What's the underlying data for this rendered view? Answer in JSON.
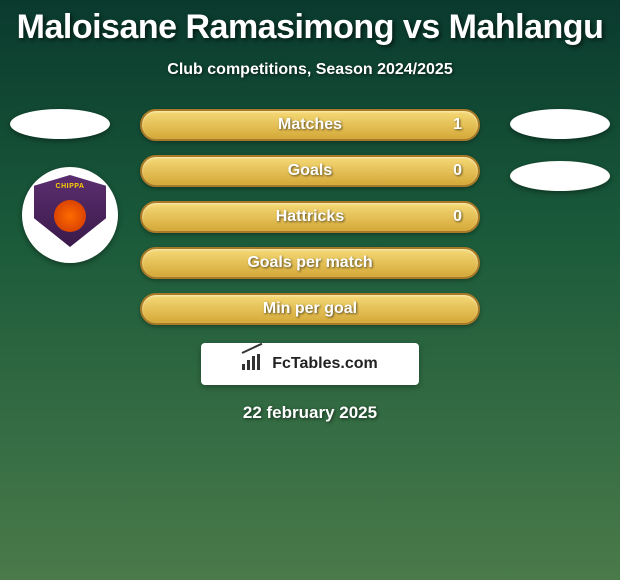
{
  "title": "Maloisane Ramasimong vs Mahlangu",
  "subtitle": "Club competitions, Season 2024/2025",
  "date": "22 february 2025",
  "footer_brand": "FcTables.com",
  "colors": {
    "bg_top": "#0a3a2e",
    "bg_mid": "#1a5a3a",
    "bg_bottom": "#4a7a4a",
    "bar_top": "#f5d976",
    "bar_bottom": "#d4a838",
    "bar_border": "#a87a28",
    "text": "#ffffff",
    "badge_shield": "#5b2e6f",
    "badge_text": "#ffcc00",
    "badge_center": "#ff6b00"
  },
  "badge": {
    "label": "CHIPPA"
  },
  "stats": [
    {
      "label": "Matches",
      "value": "1"
    },
    {
      "label": "Goals",
      "value": "0"
    },
    {
      "label": "Hattricks",
      "value": "0"
    },
    {
      "label": "Goals per match",
      "value": ""
    },
    {
      "label": "Min per goal",
      "value": ""
    }
  ],
  "chart": {
    "type": "infographic",
    "bars_width": 340,
    "bars_height": 32,
    "bars_radius": 16,
    "bars_gap": 14,
    "title_fontsize": 34,
    "subtitle_fontsize": 16,
    "label_fontsize": 16,
    "date_fontsize": 17,
    "ellipse_w": 100,
    "ellipse_h": 30,
    "badge_diameter": 96
  }
}
